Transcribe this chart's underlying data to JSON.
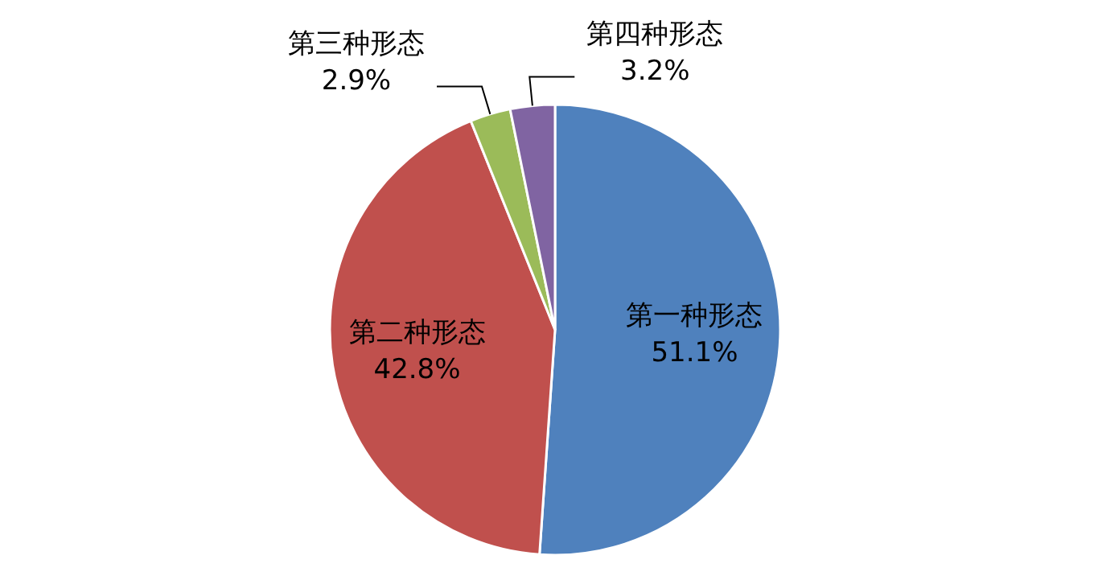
{
  "chart_data": {
    "type": "pie",
    "categories": [
      "第一种形态",
      "第二种形态",
      "第三种形态",
      "第四种形态"
    ],
    "values": [
      51.1,
      42.8,
      2.9,
      3.2
    ],
    "colors": [
      "#4f81bd",
      "#c0504d",
      "#9bbb59",
      "#8064a2"
    ],
    "value_labels": [
      "51.1%",
      "42.8%",
      "2.9%",
      "3.2%"
    ],
    "legend": false
  }
}
